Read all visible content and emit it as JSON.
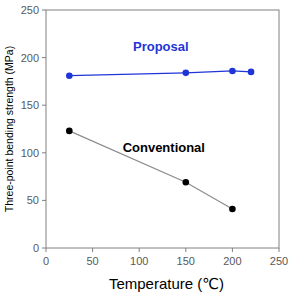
{
  "chart_data": {
    "type": "line",
    "x_label": "Temperature (℃)",
    "y_label": "Three-point bending strength (MPa)",
    "series": [
      {
        "name": "Proposal",
        "color": "#1f35d8",
        "marker": "circle",
        "x": [
          25,
          150,
          200,
          220
        ],
        "values": [
          181,
          184,
          186,
          185
        ]
      },
      {
        "name": "Conventional",
        "color": "#000000",
        "marker": "circle",
        "x": [
          25,
          150,
          200
        ],
        "values": [
          123,
          69,
          41
        ]
      }
    ],
    "xlim": [
      0,
      250
    ],
    "xticks": [
      0,
      50,
      100,
      150,
      200,
      250
    ],
    "ylim": [
      0,
      250
    ],
    "yticks": [
      0,
      50,
      100,
      150,
      200,
      250
    ],
    "grid": false
  }
}
